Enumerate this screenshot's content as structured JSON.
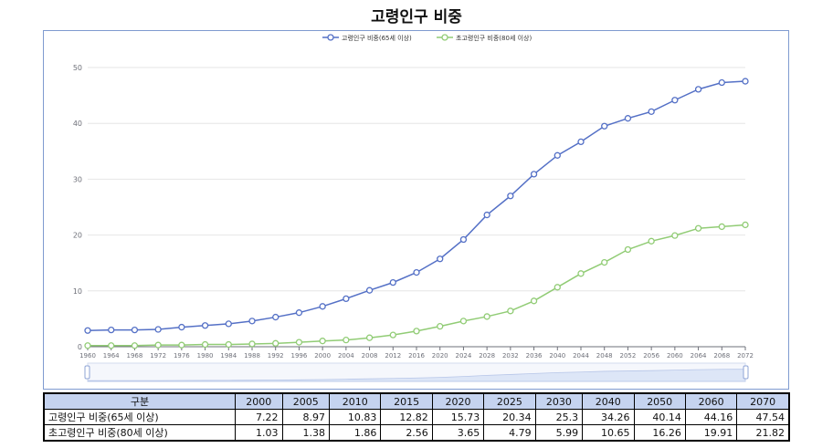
{
  "title": "고령인구 비중",
  "legend": {
    "series1": "고령인구 비중(65세 이상)",
    "series2": "초고령인구 비중(80세 이상)"
  },
  "colors": {
    "series1": "#5470c6",
    "series2": "#91cc75",
    "grid": "#e6e6e6",
    "axis": "#6e7079",
    "table_header": "#c5d3ef",
    "slider_fill": "#dde6f7"
  },
  "chart_data": {
    "type": "line",
    "x": [
      "1960",
      "1964",
      "1968",
      "1972",
      "1976",
      "1980",
      "1984",
      "1988",
      "1992",
      "1996",
      "2000",
      "2004",
      "2008",
      "2012",
      "2016",
      "2020",
      "2024",
      "2028",
      "2032",
      "2036",
      "2040",
      "2044",
      "2048",
      "2052",
      "2056",
      "2060",
      "2064",
      "2068",
      "2072"
    ],
    "ylim": [
      0,
      50
    ],
    "yticks": [
      "0",
      "10",
      "20",
      "30",
      "40",
      "50"
    ],
    "grid": true,
    "legend_position": "top-center",
    "series": [
      {
        "name": "고령인구 비중(65세 이상)",
        "values": [
          2.9,
          3.0,
          3.0,
          3.1,
          3.5,
          3.8,
          4.1,
          4.6,
          5.3,
          6.1,
          7.22,
          8.6,
          10.1,
          11.5,
          13.3,
          15.73,
          19.2,
          23.6,
          27.0,
          30.9,
          34.26,
          36.7,
          39.5,
          40.9,
          42.1,
          44.16,
          46.1,
          47.3,
          47.54
        ]
      },
      {
        "name": "초고령인구 비중(80세 이상)",
        "values": [
          0.2,
          0.2,
          0.2,
          0.3,
          0.3,
          0.4,
          0.4,
          0.5,
          0.6,
          0.8,
          1.03,
          1.2,
          1.6,
          2.1,
          2.8,
          3.65,
          4.6,
          5.4,
          6.4,
          8.2,
          10.65,
          13.1,
          15.1,
          17.4,
          18.9,
          19.91,
          21.2,
          21.5,
          21.82
        ]
      }
    ]
  },
  "table": {
    "header": [
      "구분",
      "2000",
      "2005",
      "2010",
      "2015",
      "2020",
      "2025",
      "2030",
      "2040",
      "2050",
      "2060",
      "2070"
    ],
    "rows": [
      {
        "label": "고령인구 비중(65세 이상)",
        "values": [
          "7.22",
          "8.97",
          "10.83",
          "12.82",
          "15.73",
          "20.34",
          "25.3",
          "34.26",
          "40.14",
          "44.16",
          "47.54"
        ]
      },
      {
        "label": "초고령인구 비중(80세 이상)",
        "values": [
          "1.03",
          "1.38",
          "1.86",
          "2.56",
          "3.65",
          "4.79",
          "5.99",
          "10.65",
          "16.26",
          "19.91",
          "21.82"
        ]
      }
    ]
  }
}
